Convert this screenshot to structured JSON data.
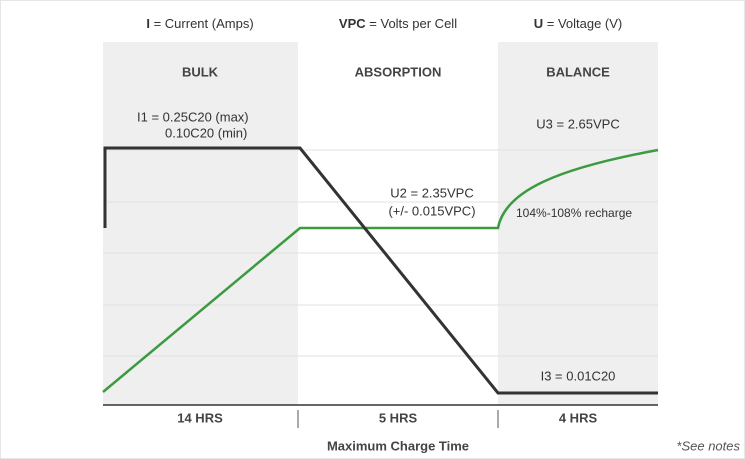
{
  "legend": [
    {
      "symbol": "I",
      "text": "= Current (Amps)"
    },
    {
      "symbol": "VPC",
      "text": "= Volts per Cell"
    },
    {
      "symbol": "U",
      "text": "= Voltage (V)"
    }
  ],
  "phases": [
    {
      "name": "BULK",
      "duration": "14 HRS"
    },
    {
      "name": "ABSORPTION",
      "duration": "5 HRS"
    },
    {
      "name": "BALANCE",
      "duration": "4 HRS"
    }
  ],
  "annotations": [
    "I1 = 0.25C20 (max)",
    "0.10C20 (min)",
    "U2 = 2.35VPC",
    "(+/- 0.015VPC)",
    "U3 = 2.65VPC",
    "104%-108% recharge",
    "I3 = 0.01C20"
  ],
  "footer": {
    "axis_label": "Maximum Charge Time",
    "note": "*See notes"
  }
}
